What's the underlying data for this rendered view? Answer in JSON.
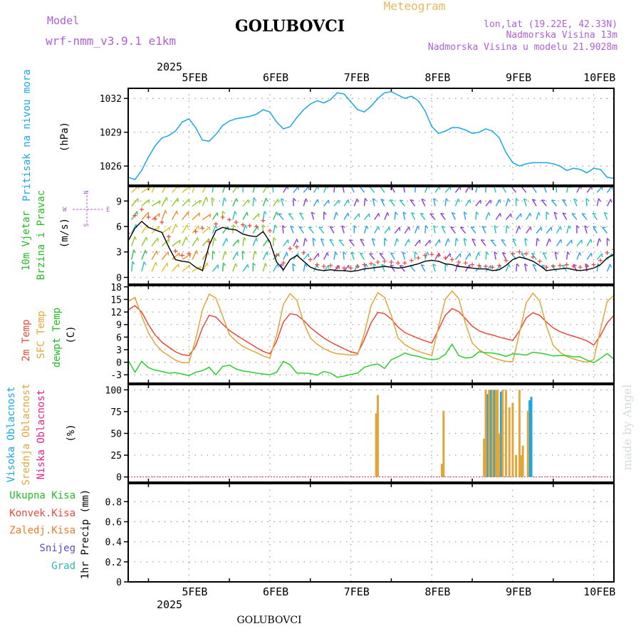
{
  "header": {
    "model_label": "Model",
    "model_name": "wrf-nmm_v3.9.1 e1km",
    "title": "GOLUBOVCI",
    "meteogram_label": "Meteogram",
    "coords": "lon,lat (19.22E, 42.33N)",
    "altitude": "Nadmorska Visina 13m",
    "model_altitude": "Nadmorska Visina u modelu 21.9028m"
  },
  "time_axis": {
    "year": "2025",
    "labels": [
      "5FEB",
      "6FEB",
      "7FEB",
      "8FEB",
      "9FEB",
      "10FEB"
    ],
    "range_hours": [
      -6,
      138
    ]
  },
  "footer": {
    "location": "GOLUBOVCI",
    "credit": "made by Angel"
  },
  "chart_data": [
    {
      "type": "line",
      "title": "Pritisak na nivou mora",
      "ylabel": "(hPa)",
      "ylim": [
        1024.3,
        1032.9
      ],
      "yticks": [
        1026,
        1029,
        1032
      ],
      "series": [
        {
          "color": "#1aa7e8",
          "x": [
            -6,
            -4,
            -2,
            0,
            2,
            4,
            6,
            8,
            10,
            12,
            14,
            16,
            18,
            20,
            22,
            24,
            26,
            28,
            30,
            32,
            34,
            36,
            38,
            40,
            42,
            44,
            46,
            48,
            50,
            52,
            54,
            56,
            58,
            60,
            62,
            64,
            66,
            68,
            70,
            72,
            74,
            76,
            78,
            80,
            82,
            84,
            86,
            88,
            90,
            92,
            94,
            96,
            98,
            100,
            102,
            104,
            106,
            108,
            110,
            112,
            114,
            116,
            118,
            120,
            122,
            124,
            126,
            128,
            130,
            132,
            134,
            136,
            138
          ],
          "values": [
            1025.0,
            1024.8,
            1025.6,
            1026.8,
            1027.8,
            1028.5,
            1028.7,
            1029.1,
            1029.9,
            1030.2,
            1029.4,
            1028.3,
            1028.2,
            1028.8,
            1029.6,
            1030.0,
            1030.2,
            1030.3,
            1030.4,
            1030.6,
            1031.0,
            1030.8,
            1029.9,
            1029.3,
            1029.5,
            1030.3,
            1031.0,
            1031.5,
            1031.8,
            1031.6,
            1031.9,
            1032.5,
            1032.4,
            1031.7,
            1031.0,
            1030.8,
            1031.3,
            1032.0,
            1032.5,
            1032.6,
            1032.3,
            1032.0,
            1032.2,
            1031.8,
            1030.9,
            1029.5,
            1028.9,
            1029.1,
            1029.4,
            1029.4,
            1029.2,
            1028.9,
            1029.0,
            1029.3,
            1029.1,
            1028.5,
            1027.2,
            1026.3,
            1026.0,
            1026.2,
            1026.3,
            1026.3,
            1026.3,
            1026.2,
            1026.0,
            1025.6,
            1025.8,
            1025.7,
            1025.4,
            1025.8,
            1025.7,
            1025.0,
            1024.9
          ]
        }
      ]
    },
    {
      "type": "line",
      "title_lines": [
        "10m Vjetar",
        "Brzina i Pravac"
      ],
      "ylabel": "(m/s)",
      "ylim": [
        -0.8,
        10.7
      ],
      "yticks": [
        0,
        3,
        6,
        9
      ],
      "compass": {
        "n": "N",
        "s": "S",
        "w": "W",
        "e": "E"
      },
      "series": [
        {
          "name": "wind-speed",
          "color": "#000000",
          "x": [
            -6,
            -4,
            -2,
            0,
            2,
            4,
            6,
            8,
            10,
            12,
            14,
            16,
            18,
            20,
            22,
            24,
            26,
            28,
            30,
            32,
            34,
            36,
            38,
            40,
            42,
            44,
            46,
            48,
            50,
            52,
            54,
            56,
            58,
            60,
            62,
            64,
            66,
            68,
            70,
            72,
            74,
            76,
            78,
            80,
            82,
            84,
            86,
            88,
            90,
            92,
            94,
            96,
            98,
            100,
            102,
            104,
            106,
            108,
            110,
            112,
            114,
            116,
            118,
            120,
            122,
            124,
            126,
            128,
            130,
            132,
            134,
            136,
            138
          ],
          "values": [
            4.3,
            5.8,
            6.6,
            5.9,
            5.6,
            5.3,
            3.6,
            2.1,
            1.9,
            1.8,
            1.2,
            0.8,
            3.8,
            5.5,
            5.9,
            5.7,
            5.6,
            5.1,
            4.9,
            4.8,
            5.4,
            4.2,
            1.8,
            0.9,
            2.1,
            2.6,
            1.9,
            1.2,
            0.9,
            0.8,
            0.9,
            0.8,
            0.8,
            0.7,
            0.8,
            1.0,
            1.1,
            1.2,
            1.3,
            1.2,
            1.1,
            1.2,
            1.4,
            1.6,
            1.9,
            2.0,
            1.9,
            1.6,
            1.5,
            1.3,
            1.2,
            1.1,
            1.0,
            1.0,
            0.8,
            0.9,
            1.4,
            2.1,
            2.4,
            2.2,
            1.9,
            1.4,
            0.8,
            0.9,
            1.0,
            1.1,
            0.9,
            0.8,
            0.9,
            1.1,
            1.5,
            2.3,
            2.7
          ]
        },
        {
          "name": "wind-gust",
          "color": "#e8483a",
          "x": [
            -6,
            -4,
            -2,
            0,
            2,
            4,
            6,
            8,
            10,
            12,
            14,
            16,
            18,
            20,
            22,
            24,
            26,
            28,
            30,
            32,
            34,
            36,
            38,
            40,
            42,
            44,
            46,
            48,
            50,
            52,
            54,
            56,
            58,
            60,
            62,
            64,
            66,
            68,
            70,
            72,
            74,
            76,
            78,
            80,
            82,
            84,
            86,
            88,
            90,
            92,
            94,
            96,
            98,
            100,
            102,
            104,
            106,
            108,
            110,
            112,
            114,
            116,
            118,
            120,
            122,
            124,
            126,
            128,
            130,
            132,
            134,
            136,
            138
          ],
          "values": [
            5.2,
            7.3,
            8.0,
            7.1,
            6.9,
            6.5,
            4.8,
            3.1,
            2.6,
            2.8,
            5.4,
            5.8,
            4.2,
            6.3,
            7.1,
            6.8,
            6.5,
            6.2,
            6.1,
            6.0,
            6.7,
            5.5,
            2.6,
            1.7,
            3.4,
            3.6,
            2.9,
            2.1,
            1.5,
            1.3,
            1.4,
            1.2,
            1.1,
            1.1,
            1.3,
            1.5,
            1.6,
            1.8,
            1.9,
            1.8,
            1.7,
            1.7,
            2.0,
            2.3,
            2.6,
            2.7,
            2.6,
            2.3,
            2.1,
            1.8,
            1.7,
            1.5,
            1.4,
            1.3,
            1.2,
            1.4,
            2.0,
            2.8,
            3.0,
            2.8,
            2.4,
            1.9,
            1.2,
            1.3,
            1.4,
            1.5,
            1.3,
            1.2,
            1.3,
            1.5,
            2.0,
            2.9,
            3.3
          ]
        }
      ],
      "wind_rows": [
        0.7,
        2.1,
        3.7,
        5.2,
        6.8,
        8.4,
        10.0
      ]
    },
    {
      "type": "line",
      "title": "",
      "ylabel": "(C)",
      "ylim": [
        -5.0,
        18.3
      ],
      "yticks": [
        -3,
        0,
        3,
        6,
        9,
        12,
        15,
        18
      ],
      "series": [
        {
          "name": "2m Temp",
          "color": "#e8483a",
          "x": [
            -6,
            -4,
            -2,
            0,
            2,
            4,
            6,
            8,
            10,
            12,
            14,
            16,
            18,
            20,
            22,
            24,
            26,
            28,
            30,
            32,
            34,
            36,
            38,
            40,
            42,
            44,
            46,
            48,
            50,
            52,
            54,
            56,
            58,
            60,
            62,
            64,
            66,
            68,
            70,
            72,
            74,
            76,
            78,
            80,
            82,
            84,
            86,
            88,
            90,
            92,
            94,
            96,
            98,
            100,
            102,
            104,
            106,
            108,
            110,
            112,
            114,
            116,
            118,
            120,
            122,
            124,
            126,
            128,
            130,
            132,
            134,
            136,
            138
          ],
          "values": [
            12.5,
            13.5,
            12.0,
            9.0,
            6.5,
            4.8,
            3.6,
            2.5,
            1.8,
            1.6,
            3.8,
            8.2,
            11.2,
            10.8,
            9.1,
            7.6,
            6.5,
            5.5,
            4.5,
            3.5,
            2.6,
            2.0,
            5.0,
            9.6,
            11.6,
            11.3,
            10.0,
            8.3,
            7.0,
            5.8,
            4.8,
            4.0,
            3.2,
            2.5,
            2.1,
            5.4,
            9.4,
            11.9,
            11.6,
            10.3,
            8.4,
            7.1,
            6.4,
            5.7,
            5.1,
            4.6,
            7.8,
            11.2,
            12.8,
            12.1,
            10.4,
            8.6,
            7.5,
            6.9,
            6.5,
            6.0,
            5.6,
            5.2,
            7.5,
            10.6,
            11.8,
            11.2,
            9.6,
            8.2,
            7.3,
            6.7,
            6.2,
            5.7,
            5.1,
            4.1,
            6.4,
            9.4,
            11.2
          ]
        },
        {
          "name": "SFC Temp",
          "color": "#e0a63a",
          "x": [
            -6,
            -4,
            -2,
            0,
            2,
            4,
            6,
            8,
            10,
            12,
            14,
            16,
            18,
            20,
            22,
            24,
            26,
            28,
            30,
            32,
            34,
            36,
            38,
            40,
            42,
            44,
            46,
            48,
            50,
            52,
            54,
            56,
            58,
            60,
            62,
            64,
            66,
            68,
            70,
            72,
            74,
            76,
            78,
            80,
            82,
            84,
            86,
            88,
            90,
            92,
            94,
            96,
            98,
            100,
            102,
            104,
            106,
            108,
            110,
            112,
            114,
            116,
            118,
            120,
            122,
            124,
            126,
            128,
            130,
            132,
            134,
            136,
            138
          ],
          "values": [
            14.5,
            15.5,
            11.0,
            7.0,
            4.4,
            2.6,
            1.6,
            0.5,
            -0.1,
            -0.1,
            5.4,
            12.5,
            16.3,
            15.3,
            11.0,
            6.6,
            5.0,
            3.8,
            3.0,
            2.3,
            1.5,
            1.0,
            6.5,
            13.8,
            16.4,
            14.8,
            9.5,
            5.8,
            4.3,
            3.3,
            2.5,
            2.0,
            1.9,
            1.7,
            1.8,
            6.8,
            13.5,
            16.6,
            15.5,
            11.2,
            5.8,
            4.2,
            3.3,
            2.6,
            2.1,
            1.6,
            8.5,
            15.0,
            17.0,
            15.2,
            9.2,
            4.6,
            3.0,
            2.0,
            1.1,
            0.6,
            0.2,
            0.1,
            7.0,
            14.2,
            16.5,
            14.6,
            8.6,
            4.0,
            2.4,
            1.4,
            0.8,
            0.3,
            0.0,
            0.6,
            7.8,
            14.5,
            16.0
          ]
        },
        {
          "name": "dewpt Temp",
          "color": "#2ecc2e",
          "x": [
            -6,
            -4,
            -2,
            0,
            2,
            4,
            6,
            8,
            10,
            12,
            14,
            16,
            18,
            20,
            22,
            24,
            26,
            28,
            30,
            32,
            34,
            36,
            38,
            40,
            42,
            44,
            46,
            48,
            50,
            52,
            54,
            56,
            58,
            60,
            62,
            64,
            66,
            68,
            70,
            72,
            74,
            76,
            78,
            80,
            82,
            84,
            86,
            88,
            90,
            92,
            94,
            96,
            98,
            100,
            102,
            104,
            106,
            108,
            110,
            112,
            114,
            116,
            118,
            120,
            122,
            124,
            126,
            128,
            130,
            132,
            134,
            136,
            138
          ],
          "values": [
            0.5,
            -2.4,
            0.2,
            -1.3,
            -1.9,
            -2.2,
            -2.6,
            -2.5,
            -2.8,
            -3.2,
            -2.4,
            -2.0,
            -1.2,
            -3.0,
            -1.0,
            -0.7,
            -1.6,
            -2.1,
            -2.3,
            -2.6,
            -2.8,
            -3.0,
            -2.4,
            0.2,
            -0.6,
            -2.6,
            -2.6,
            -2.7,
            -3.1,
            -2.2,
            -2.6,
            -3.6,
            -3.3,
            -2.9,
            -2.6,
            -1.2,
            -0.7,
            -0.4,
            -1.5,
            0.6,
            1.3,
            2.2,
            1.7,
            1.4,
            0.9,
            0.6,
            0.8,
            1.9,
            4.3,
            1.6,
            1.0,
            1.2,
            2.5,
            2.3,
            2.2,
            1.9,
            1.4,
            2.0,
            1.9,
            1.7,
            2.4,
            2.2,
            1.9,
            1.5,
            1.6,
            1.6,
            1.3,
            1.3,
            0.5,
            -0.1,
            0.9,
            2.1,
            0.7
          ]
        }
      ]
    },
    {
      "type": "bar",
      "title": "",
      "ylabel": "(%)",
      "ylim": [
        -6,
        106
      ],
      "yticks": [
        0,
        25,
        50,
        75,
        100
      ],
      "series": [
        {
          "name": "Visoka Oblacnost",
          "color": "#1aa7e8",
          "x": [
            100.5,
            101.5,
            102.5,
            104.5,
            113.0,
            113.5
          ],
          "values": [
            95,
            100,
            100,
            98,
            88,
            92
          ]
        },
        {
          "name": "Srednja Oblacnost",
          "color": "#e0a63a",
          "x": [
            67.5,
            68.0,
            87.0,
            87.5,
            99.5,
            100.0,
            101.0,
            102.0,
            103.0,
            103.5,
            104.0,
            105.0,
            106.0,
            107.0,
            108.0,
            109.0,
            110.0,
            110.5,
            111.0,
            112.5
          ],
          "values": [
            73,
            94,
            15,
            76,
            44,
            100,
            100,
            99,
            100,
            100,
            50,
            100,
            100,
            80,
            85,
            25,
            100,
            25,
            36,
            76
          ]
        },
        {
          "name": "Niska Oblacnost",
          "color": "#e0258a",
          "x": [],
          "values": []
        }
      ]
    },
    {
      "type": "bar",
      "title": "",
      "ylabel": "1hr Precip (mm)",
      "ylim": [
        0,
        0.98
      ],
      "yticks": [
        0,
        0.2,
        0.4,
        0.6,
        0.8
      ],
      "series": [
        {
          "name": "Ukupna Kisa",
          "color": "#22bb22",
          "x": [],
          "values": []
        },
        {
          "name": "Konvek.Kisa",
          "color": "#e8483a",
          "x": [],
          "values": []
        },
        {
          "name": "Zaledj.Kisa",
          "color": "#f07a2a",
          "x": [],
          "values": []
        },
        {
          "name": "Snijeg",
          "color": "#5a4ad8",
          "x": [],
          "values": []
        },
        {
          "name": "Grad",
          "color": "#2ab8b8",
          "x": [],
          "values": []
        }
      ]
    }
  ]
}
